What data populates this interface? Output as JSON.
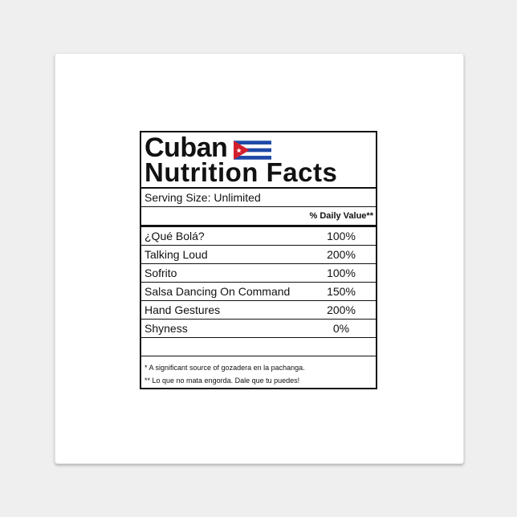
{
  "label": {
    "title_line1": "Cuban",
    "title_line2": "Nutrition Facts",
    "serving_label": "Serving Size:",
    "serving_value": "Unlimited",
    "dv_header": "% Daily Value**",
    "items": [
      {
        "name": "¿Qué Bolá?",
        "value": "100%"
      },
      {
        "name": "Talking Loud",
        "value": "200%"
      },
      {
        "name": "Sofrito",
        "value": "100%"
      },
      {
        "name": "Salsa Dancing On Command",
        "value": "150%"
      },
      {
        "name": "Hand Gestures",
        "value": "200%"
      },
      {
        "name": "Shyness",
        "value": "0%"
      }
    ],
    "footnotes": [
      "* A significant source of gozadera en la pachanga.",
      "** Lo que no mata engorda. Dale que tu puedes!"
    ],
    "flag_colors": {
      "blue": "#1d4aa8",
      "red": "#d21f2b",
      "white": "#ffffff"
    }
  }
}
